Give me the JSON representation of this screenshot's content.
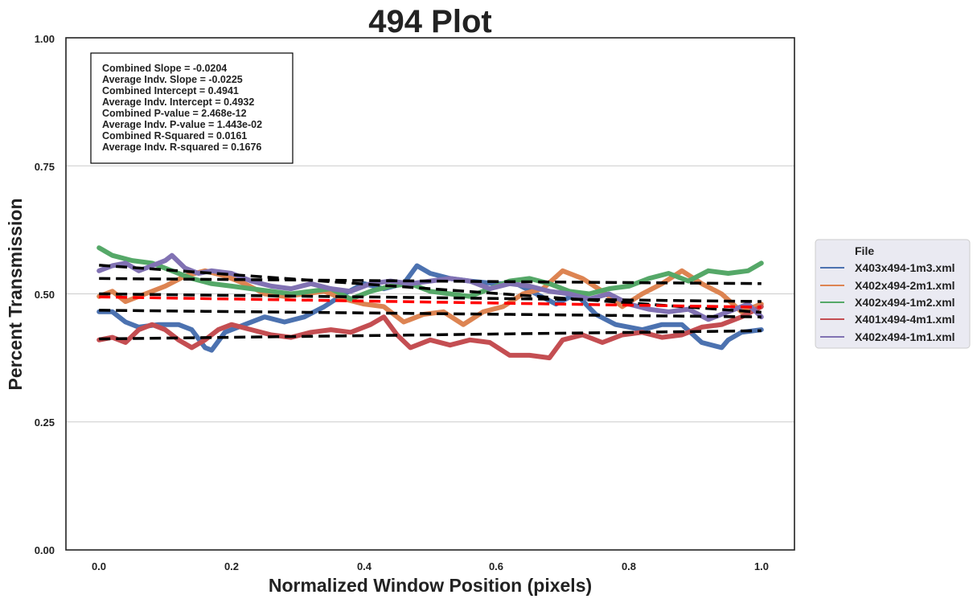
{
  "chart_data": {
    "type": "line",
    "title": "494 Plot",
    "xlabel": "Normalized Window Position (pixels)",
    "ylabel": "Percent Transmission",
    "xlim": [
      -0.05,
      1.05
    ],
    "ylim": [
      0.0,
      1.0
    ],
    "x_ticks": [
      "0.0",
      "0.2",
      "0.4",
      "0.6",
      "0.8",
      "1.0"
    ],
    "y_ticks": [
      "0.00",
      "0.25",
      "0.50",
      "0.75",
      "1.00"
    ],
    "grid": "horizontal",
    "stats": [
      "Combined Slope = -0.0204",
      "Average Indv. Slope = -0.0225",
      "Combined Intercept = 0.4941",
      "Average Indv. Intercept = 0.4932",
      "Combined P-value = 2.468e-12",
      "Average Indv. P-value = 1.443e-02",
      "Combined R-Squared = 0.0161",
      "Average Indv. R-squared = 0.1676"
    ],
    "legend": {
      "title": "File",
      "placement": "outside-right"
    },
    "series": [
      {
        "name": "X403x494-1m3.xml",
        "color": "#4c72b0",
        "x": [
          0.0,
          0.02,
          0.04,
          0.06,
          0.09,
          0.12,
          0.14,
          0.16,
          0.17,
          0.19,
          0.22,
          0.25,
          0.28,
          0.31,
          0.34,
          0.37,
          0.4,
          0.43,
          0.46,
          0.48,
          0.5,
          0.53,
          0.56,
          0.6,
          0.63,
          0.66,
          0.69,
          0.72,
          0.75,
          0.78,
          0.82,
          0.85,
          0.88,
          0.91,
          0.94,
          0.95,
          0.97,
          1.0
        ],
        "y": [
          0.465,
          0.465,
          0.445,
          0.435,
          0.44,
          0.44,
          0.43,
          0.395,
          0.39,
          0.425,
          0.44,
          0.455,
          0.445,
          0.455,
          0.475,
          0.5,
          0.52,
          0.51,
          0.52,
          0.555,
          0.54,
          0.53,
          0.525,
          0.52,
          0.52,
          0.5,
          0.48,
          0.5,
          0.46,
          0.44,
          0.43,
          0.44,
          0.44,
          0.405,
          0.395,
          0.41,
          0.425,
          0.43
        ]
      },
      {
        "name": "X402x494-2m1.xml",
        "color": "#dd8452",
        "x": [
          0.0,
          0.02,
          0.04,
          0.07,
          0.1,
          0.13,
          0.16,
          0.19,
          0.22,
          0.25,
          0.28,
          0.31,
          0.34,
          0.37,
          0.4,
          0.43,
          0.46,
          0.49,
          0.52,
          0.55,
          0.58,
          0.61,
          0.64,
          0.67,
          0.7,
          0.73,
          0.76,
          0.79,
          0.82,
          0.85,
          0.88,
          0.91,
          0.94,
          0.97,
          1.0
        ],
        "y": [
          0.495,
          0.505,
          0.485,
          0.5,
          0.515,
          0.535,
          0.545,
          0.535,
          0.52,
          0.5,
          0.495,
          0.5,
          0.505,
          0.49,
          0.48,
          0.475,
          0.445,
          0.46,
          0.465,
          0.44,
          0.465,
          0.475,
          0.5,
          0.51,
          0.545,
          0.53,
          0.505,
          0.475,
          0.5,
          0.52,
          0.545,
          0.52,
          0.5,
          0.465,
          0.48
        ]
      },
      {
        "name": "X402x494-1m2.xml",
        "color": "#55a868",
        "x": [
          0.0,
          0.02,
          0.05,
          0.08,
          0.11,
          0.14,
          0.17,
          0.2,
          0.23,
          0.26,
          0.29,
          0.32,
          0.35,
          0.38,
          0.41,
          0.44,
          0.47,
          0.5,
          0.53,
          0.56,
          0.59,
          0.62,
          0.65,
          0.68,
          0.71,
          0.74,
          0.77,
          0.8,
          0.83,
          0.86,
          0.89,
          0.92,
          0.95,
          0.98,
          1.0
        ],
        "y": [
          0.59,
          0.575,
          0.565,
          0.56,
          0.545,
          0.53,
          0.52,
          0.515,
          0.51,
          0.505,
          0.5,
          0.505,
          0.51,
          0.49,
          0.505,
          0.515,
          0.52,
          0.505,
          0.5,
          0.495,
          0.51,
          0.525,
          0.53,
          0.52,
          0.505,
          0.5,
          0.51,
          0.515,
          0.53,
          0.54,
          0.525,
          0.545,
          0.54,
          0.545,
          0.56
        ]
      },
      {
        "name": "X401x494-4m1.xml",
        "color": "#c44e52",
        "x": [
          0.0,
          0.02,
          0.04,
          0.06,
          0.08,
          0.1,
          0.12,
          0.14,
          0.16,
          0.18,
          0.2,
          0.23,
          0.26,
          0.29,
          0.32,
          0.35,
          0.38,
          0.41,
          0.43,
          0.45,
          0.47,
          0.5,
          0.53,
          0.56,
          0.59,
          0.62,
          0.65,
          0.68,
          0.7,
          0.73,
          0.76,
          0.79,
          0.82,
          0.85,
          0.88,
          0.91,
          0.94,
          0.97,
          1.0
        ],
        "y": [
          0.41,
          0.415,
          0.405,
          0.43,
          0.44,
          0.43,
          0.41,
          0.395,
          0.41,
          0.43,
          0.44,
          0.43,
          0.42,
          0.415,
          0.425,
          0.43,
          0.425,
          0.44,
          0.455,
          0.42,
          0.395,
          0.41,
          0.4,
          0.41,
          0.405,
          0.38,
          0.38,
          0.375,
          0.41,
          0.42,
          0.405,
          0.42,
          0.425,
          0.415,
          0.42,
          0.435,
          0.44,
          0.455,
          0.475
        ]
      },
      {
        "name": "X402x494-1m1.xml",
        "color": "#8172b3",
        "x": [
          0.0,
          0.02,
          0.04,
          0.06,
          0.08,
          0.1,
          0.11,
          0.13,
          0.15,
          0.17,
          0.2,
          0.23,
          0.26,
          0.29,
          0.32,
          0.35,
          0.38,
          0.41,
          0.44,
          0.47,
          0.5,
          0.53,
          0.56,
          0.59,
          0.62,
          0.65,
          0.68,
          0.71,
          0.74,
          0.77,
          0.8,
          0.83,
          0.86,
          0.89,
          0.92,
          0.95,
          0.98,
          1.0
        ],
        "y": [
          0.545,
          0.555,
          0.56,
          0.545,
          0.555,
          0.565,
          0.575,
          0.55,
          0.54,
          0.545,
          0.54,
          0.525,
          0.515,
          0.51,
          0.52,
          0.51,
          0.505,
          0.52,
          0.525,
          0.52,
          0.525,
          0.53,
          0.525,
          0.51,
          0.52,
          0.515,
          0.505,
          0.5,
          0.49,
          0.5,
          0.48,
          0.47,
          0.465,
          0.47,
          0.45,
          0.465,
          0.48,
          0.455
        ]
      }
    ],
    "fit_lines": [
      {
        "color": "#000000",
        "x": [
          0.0,
          1.0
        ],
        "y": [
          0.556,
          0.464
        ]
      },
      {
        "color": "#000000",
        "x": [
          0.0,
          1.0
        ],
        "y": [
          0.53,
          0.52
        ]
      },
      {
        "color": "#000000",
        "x": [
          0.0,
          1.0
        ],
        "y": [
          0.5,
          0.485
        ]
      },
      {
        "color": "#000000",
        "x": [
          0.0,
          1.0
        ],
        "y": [
          0.468,
          0.455
        ]
      },
      {
        "color": "#000000",
        "x": [
          0.0,
          1.0
        ],
        "y": [
          0.412,
          0.428
        ]
      },
      {
        "color": "#ff0000",
        "x": [
          0.0,
          1.0
        ],
        "y": [
          0.494,
          0.474
        ]
      }
    ]
  }
}
